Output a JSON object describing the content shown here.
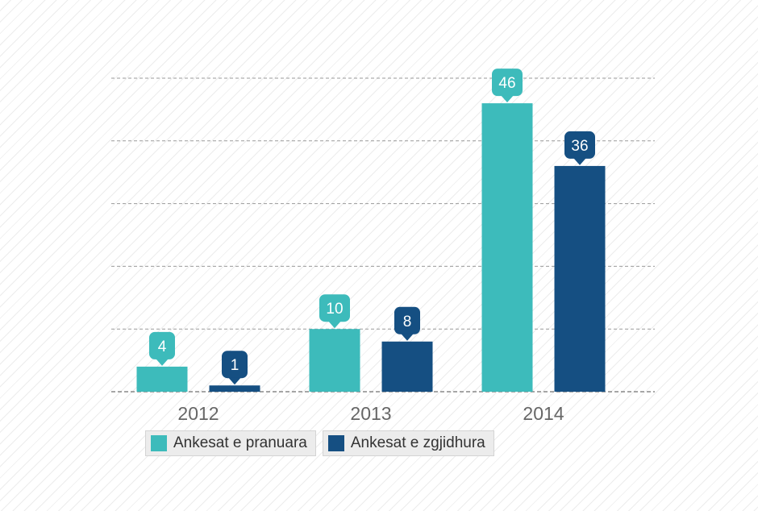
{
  "chart_data": {
    "type": "bar",
    "categories": [
      "2012",
      "2013",
      "2014"
    ],
    "series": [
      {
        "name": "Ankesat e pranuara",
        "values": [
          4,
          10,
          46
        ],
        "color": "#3dbbbb"
      },
      {
        "name": "Ankesat e zgjidhura",
        "values": [
          1,
          8,
          36
        ],
        "color": "#154f82"
      }
    ],
    "ylim": [
      0,
      50
    ],
    "grid": true,
    "legend_position": "bottom-left"
  }
}
